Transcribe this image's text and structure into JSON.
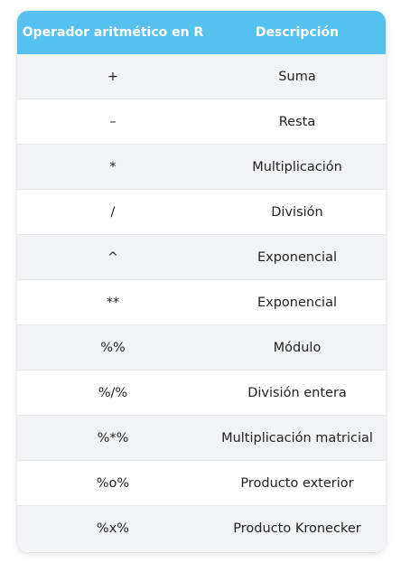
{
  "table": {
    "headers": {
      "operator": "Operador aritmético en R",
      "description": "Descripción"
    },
    "rows": [
      {
        "operator": "+",
        "description": "Suma"
      },
      {
        "operator": "–",
        "description": "Resta"
      },
      {
        "operator": "*",
        "description": "Multiplicación"
      },
      {
        "operator": "/",
        "description": "División"
      },
      {
        "operator": "^",
        "description": "Exponencial"
      },
      {
        "operator": "**",
        "description": "Exponencial"
      },
      {
        "operator": "%%",
        "description": "Módulo"
      },
      {
        "operator": "%/%",
        "description": "División entera"
      },
      {
        "operator": "%*%",
        "description": "Multiplicación matricial"
      },
      {
        "operator": "%o%",
        "description": "Producto exterior"
      },
      {
        "operator": "%x%",
        "description": "Producto Kronecker"
      }
    ]
  },
  "colors": {
    "header_bg": "#56c1ef",
    "header_text": "#ffffff",
    "row_alt_bg": "#f2f3f5",
    "row_bg": "#ffffff"
  }
}
